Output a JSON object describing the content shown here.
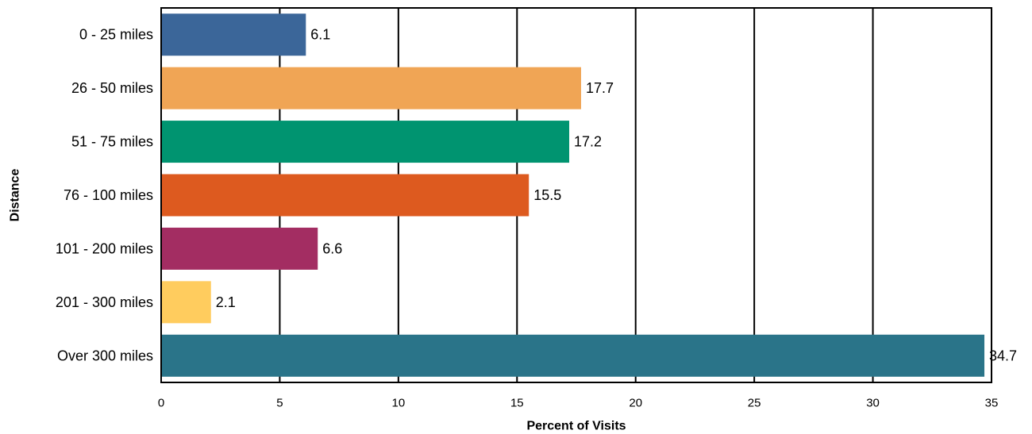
{
  "chart_data": {
    "type": "bar",
    "orientation": "horizontal",
    "categories": [
      "0 - 25 miles",
      "26 - 50 miles",
      "51 - 75 miles",
      "76 - 100 miles",
      "101 - 200 miles",
      "201 - 300 miles",
      "Over 300 miles"
    ],
    "values": [
      6.1,
      17.7,
      17.2,
      15.5,
      6.6,
      2.1,
      34.7
    ],
    "value_labels": [
      "6.1",
      "17.7",
      "17.2",
      "15.5",
      "6.6",
      "2.1",
      "34.7"
    ],
    "colors": [
      "#3B6699",
      "#F0A555",
      "#009470",
      "#DD5A1F",
      "#A32D62",
      "#FFCC5E",
      "#2A7489"
    ],
    "xlabel": "Percent of Visits",
    "ylabel": "Distance",
    "xlim": [
      0,
      35
    ],
    "xticks": [
      0,
      5,
      10,
      15,
      20,
      25,
      30,
      35
    ],
    "xtick_labels": [
      "0",
      "5",
      "10",
      "15",
      "20",
      "25",
      "30",
      "35"
    ],
    "grid": "vertical",
    "legend": "none"
  }
}
